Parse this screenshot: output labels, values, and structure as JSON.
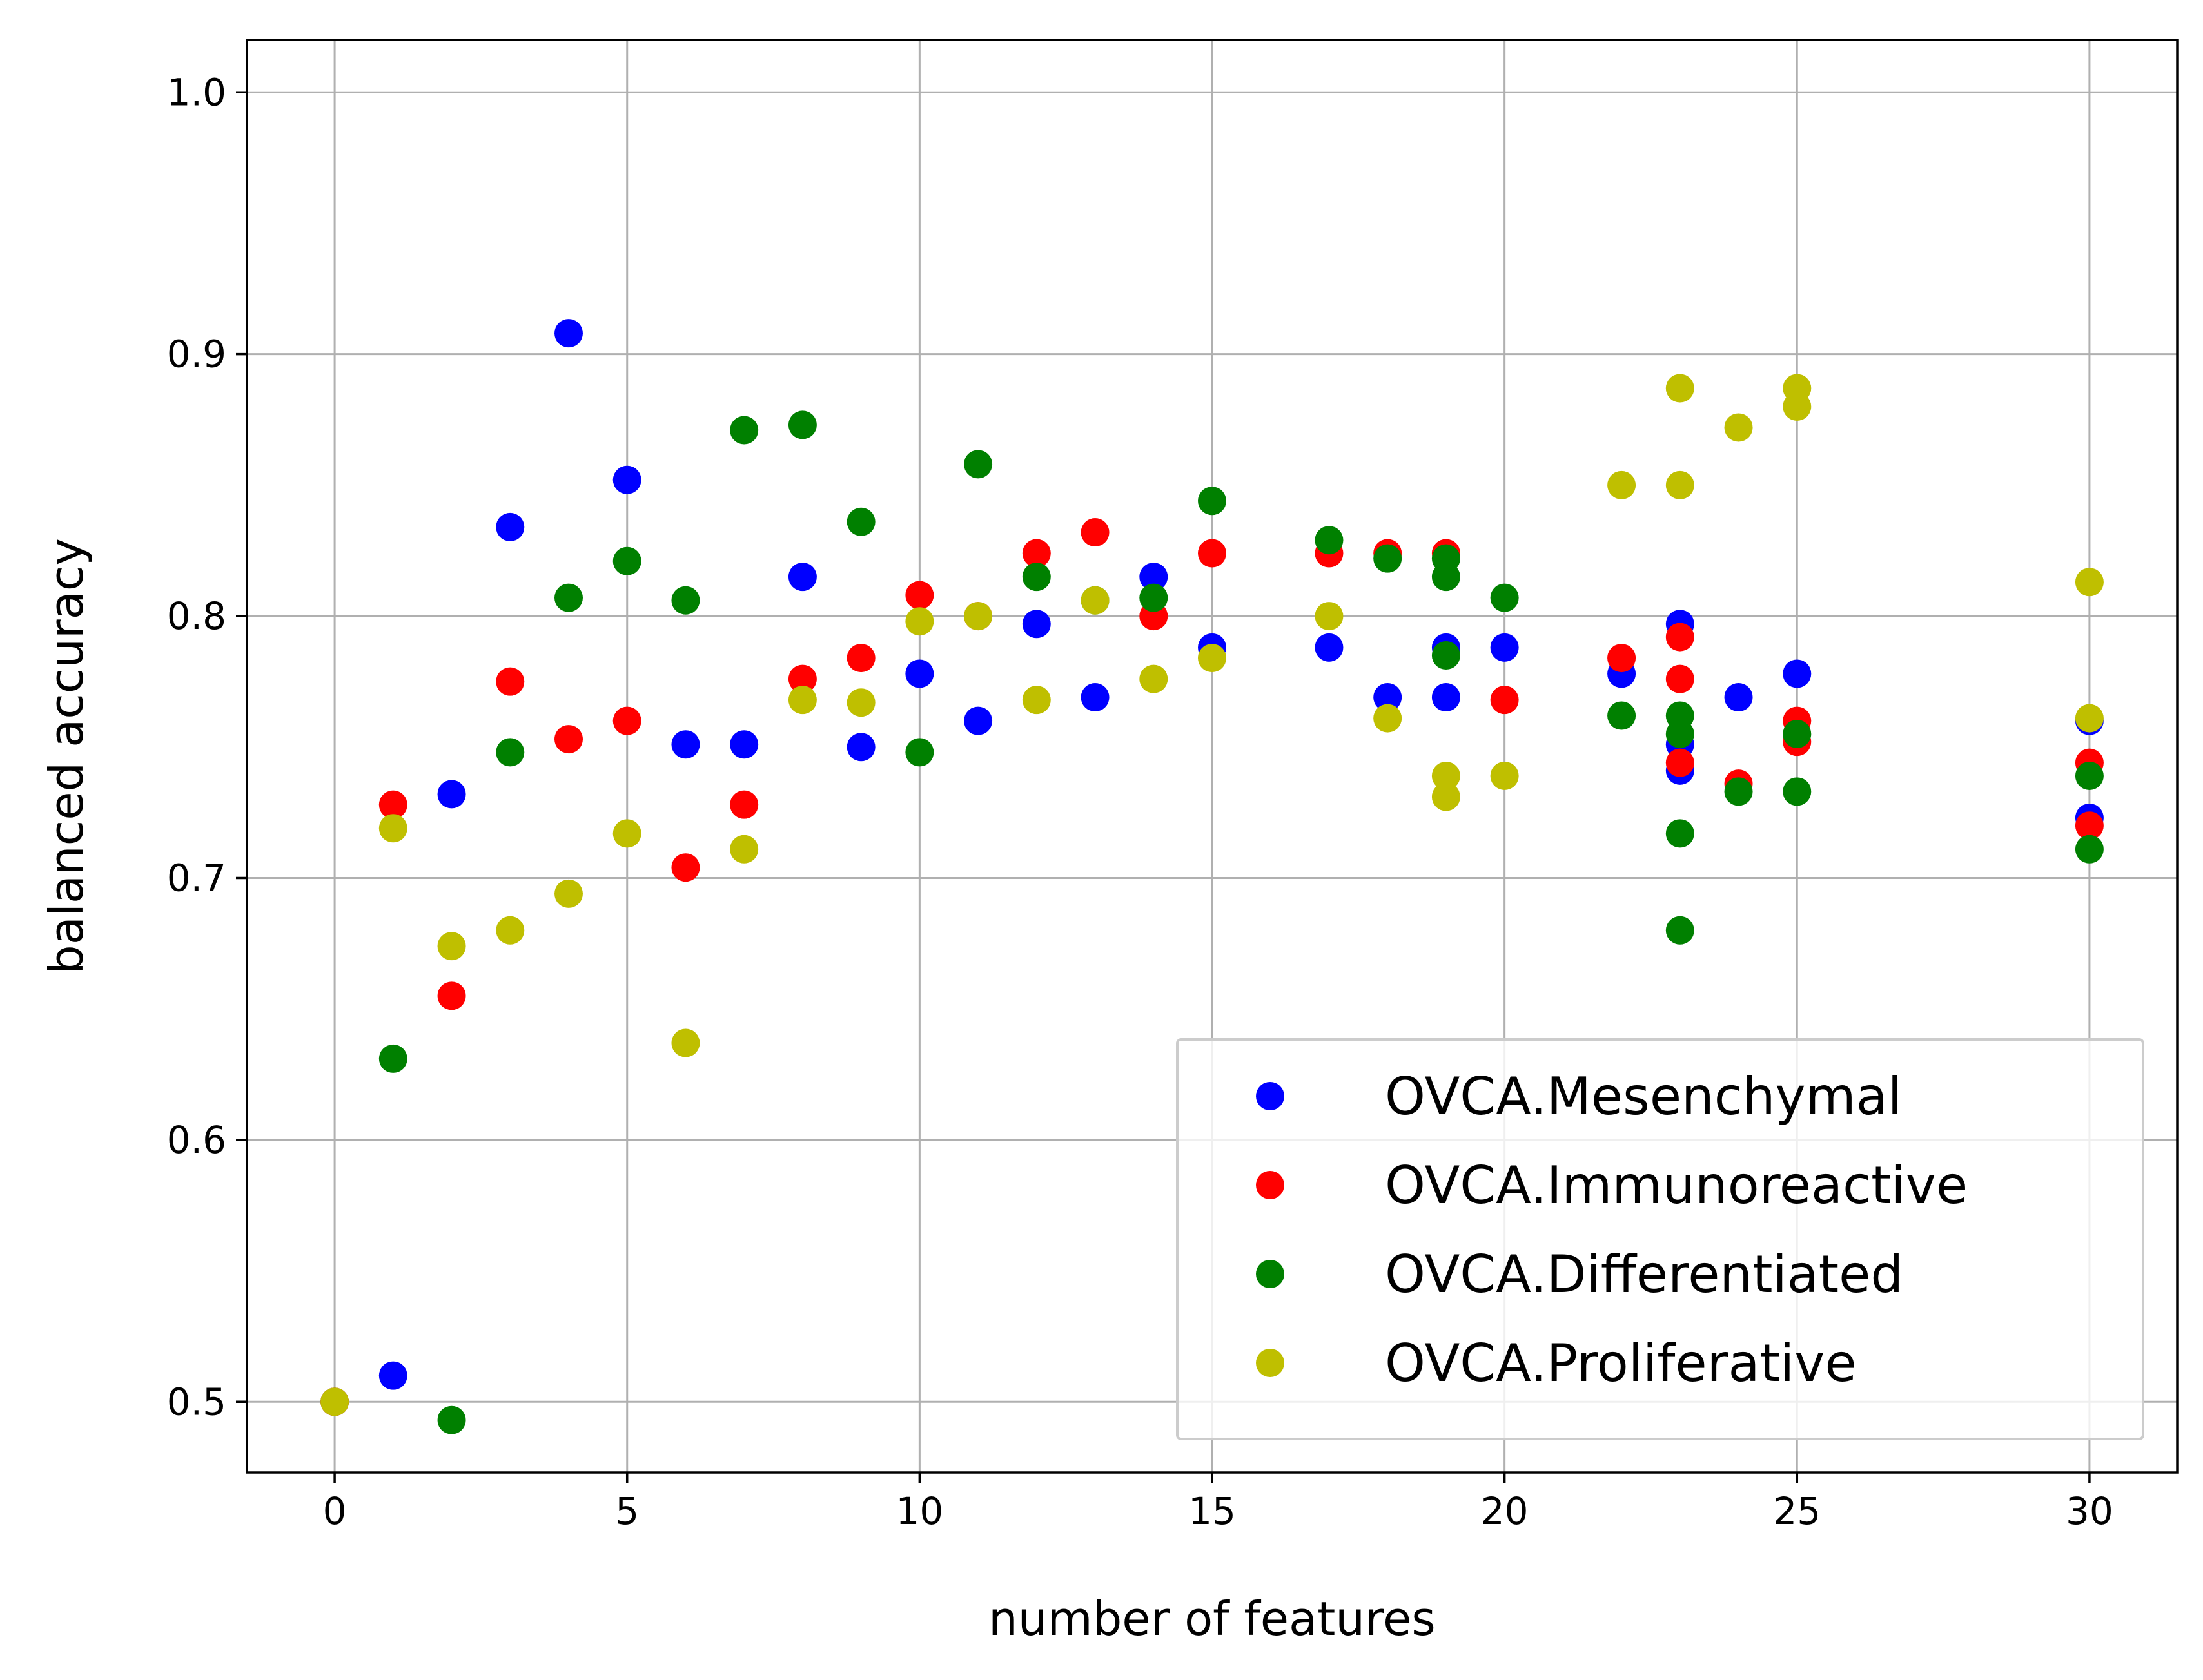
{
  "chart_data": {
    "type": "scatter",
    "title": "",
    "xlabel": "number of features",
    "ylabel": "balanced accuracy",
    "xlim": [
      -1.5,
      31.5
    ],
    "ylim": [
      0.473,
      1.02
    ],
    "xticks": [
      0,
      5,
      10,
      15,
      20,
      25,
      30
    ],
    "xtick_labels": [
      "0",
      "5",
      "10",
      "15",
      "20",
      "25",
      "30"
    ],
    "yticks": [
      0.5,
      0.6,
      0.7,
      0.8,
      0.9,
      1.0
    ],
    "ytick_labels": [
      "0.5",
      "0.6",
      "0.7",
      "0.8",
      "0.9",
      "1.0"
    ],
    "grid": true,
    "legend_position": "lower-right",
    "series": [
      {
        "name": "OVCA.Mesenchymal",
        "color": "#0000ff",
        "points": [
          [
            0,
            0.5
          ],
          [
            1,
            0.51
          ],
          [
            2,
            0.732
          ],
          [
            3,
            0.834
          ],
          [
            4,
            0.908
          ],
          [
            5,
            0.852
          ],
          [
            6,
            0.751
          ],
          [
            7,
            0.751
          ],
          [
            8,
            0.815
          ],
          [
            9,
            0.75
          ],
          [
            10,
            0.778
          ],
          [
            11,
            0.76
          ],
          [
            12,
            0.797
          ],
          [
            13,
            0.769
          ],
          [
            14,
            0.815
          ],
          [
            15,
            0.788
          ],
          [
            17,
            0.788
          ],
          [
            18,
            0.769
          ],
          [
            19,
            0.788
          ],
          [
            19,
            0.769
          ],
          [
            20,
            0.788
          ],
          [
            22,
            0.778
          ],
          [
            23,
            0.797
          ],
          [
            23,
            0.751
          ],
          [
            23,
            0.741
          ],
          [
            24,
            0.769
          ],
          [
            25,
            0.778
          ],
          [
            30,
            0.76
          ],
          [
            30,
            0.723
          ]
        ]
      },
      {
        "name": "OVCA.Immunoreactive",
        "color": "#ff0000",
        "points": [
          [
            0,
            0.5
          ],
          [
            1,
            0.728
          ],
          [
            2,
            0.655
          ],
          [
            3,
            0.775
          ],
          [
            4,
            0.753
          ],
          [
            5,
            0.76
          ],
          [
            6,
            0.704
          ],
          [
            7,
            0.728
          ],
          [
            8,
            0.776
          ],
          [
            9,
            0.784
          ],
          [
            10,
            0.808
          ],
          [
            11,
            0.8
          ],
          [
            12,
            0.824
          ],
          [
            13,
            0.832
          ],
          [
            14,
            0.8
          ],
          [
            15,
            0.824
          ],
          [
            17,
            0.824
          ],
          [
            18,
            0.824
          ],
          [
            19,
            0.824
          ],
          [
            20,
            0.768
          ],
          [
            22,
            0.784
          ],
          [
            23,
            0.792
          ],
          [
            23,
            0.776
          ],
          [
            23,
            0.744
          ],
          [
            24,
            0.736
          ],
          [
            25,
            0.76
          ],
          [
            25,
            0.752
          ],
          [
            30,
            0.744
          ],
          [
            30,
            0.72
          ]
        ]
      },
      {
        "name": "OVCA.Differentiated",
        "color": "#008000",
        "points": [
          [
            1,
            0.631
          ],
          [
            2,
            0.493
          ],
          [
            3,
            0.748
          ],
          [
            4,
            0.807
          ],
          [
            5,
            0.821
          ],
          [
            6,
            0.806
          ],
          [
            7,
            0.871
          ],
          [
            8,
            0.873
          ],
          [
            9,
            0.836
          ],
          [
            10,
            0.748
          ],
          [
            11,
            0.858
          ],
          [
            12,
            0.815
          ],
          [
            13,
            0.806
          ],
          [
            14,
            0.807
          ],
          [
            15,
            0.844
          ],
          [
            17,
            0.829
          ],
          [
            18,
            0.822
          ],
          [
            19,
            0.822
          ],
          [
            19,
            0.815
          ],
          [
            19,
            0.785
          ],
          [
            20,
            0.807
          ],
          [
            22,
            0.762
          ],
          [
            23,
            0.762
          ],
          [
            23,
            0.755
          ],
          [
            23,
            0.717
          ],
          [
            23,
            0.68
          ],
          [
            24,
            0.733
          ],
          [
            25,
            0.755
          ],
          [
            25,
            0.733
          ],
          [
            30,
            0.739
          ],
          [
            30,
            0.711
          ]
        ]
      },
      {
        "name": "OVCA.Proliferative",
        "color": "#bfbf00",
        "points": [
          [
            0,
            0.5
          ],
          [
            1,
            0.719
          ],
          [
            2,
            0.674
          ],
          [
            3,
            0.68
          ],
          [
            4,
            0.694
          ],
          [
            5,
            0.717
          ],
          [
            6,
            0.637
          ],
          [
            7,
            0.711
          ],
          [
            8,
            0.768
          ],
          [
            9,
            0.767
          ],
          [
            10,
            0.798
          ],
          [
            11,
            0.8
          ],
          [
            12,
            0.768
          ],
          [
            13,
            0.806
          ],
          [
            14,
            0.776
          ],
          [
            15,
            0.784
          ],
          [
            17,
            0.8
          ],
          [
            18,
            0.761
          ],
          [
            19,
            0.739
          ],
          [
            19,
            0.731
          ],
          [
            20,
            0.739
          ],
          [
            22,
            0.85
          ],
          [
            23,
            0.887
          ],
          [
            23,
            0.85
          ],
          [
            24,
            0.872
          ],
          [
            25,
            0.887
          ],
          [
            25,
            0.88
          ],
          [
            30,
            0.813
          ],
          [
            30,
            0.761
          ]
        ]
      }
    ]
  }
}
